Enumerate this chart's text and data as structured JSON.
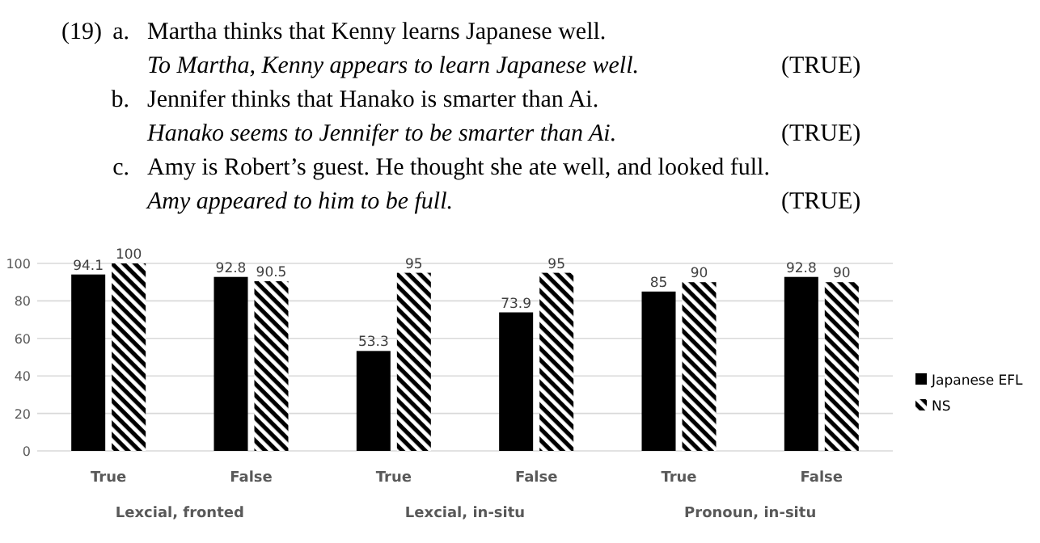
{
  "chart_data": {
    "type": "bar",
    "categories": [
      "True",
      "False",
      "True",
      "False",
      "True",
      "False"
    ],
    "series": [
      {
        "name": "Japanese EFL",
        "color": "#000000",
        "values": [
          94.1,
          92.8,
          53.3,
          73.9,
          85,
          92.8
        ]
      },
      {
        "name": "NS",
        "color": "#000000",
        "values": [
          100,
          90.5,
          95,
          95,
          90,
          90
        ]
      }
    ],
    "ylim": [
      0,
      100
    ],
    "yticks": [
      0,
      20,
      40,
      60,
      80,
      100
    ],
    "grid": "y",
    "legend": "right",
    "data_labels": true,
    "annotations": [
      "(19)",
      "a.",
      "Martha thinks that Kenny learns Japanese well.",
      "To Martha, Kenny appears to learn Japanese well.",
      "(TRUE)",
      "b.",
      "Jennifer thinks that Hanako is smarter than Ai.",
      "Hanako seems to Jennifer to be smarter than Ai.",
      "(TRUE)",
      "c.",
      "Amy is Robert’s guest. He thought she ate well, and looked full.",
      "Amy appeared to him to be full.",
      "(TRUE)",
      "Lexcial, fronted",
      "Lexcial, in-situ",
      "Pronoun, in-situ"
    ]
  }
}
